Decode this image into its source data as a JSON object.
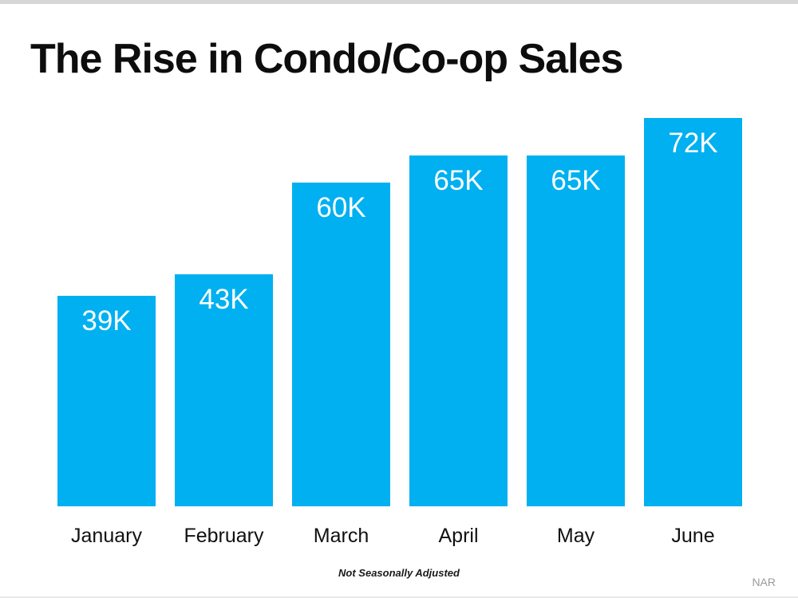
{
  "chart_data": {
    "type": "bar",
    "title": "The Rise in Condo/Co-op Sales",
    "categories": [
      "January",
      "February",
      "March",
      "April",
      "May",
      "June"
    ],
    "values": [
      39000,
      43000,
      60000,
      65000,
      65000,
      72000
    ],
    "value_labels": [
      "39K",
      "43K",
      "60K",
      "65K",
      "65K",
      "72K"
    ],
    "ylim": [
      0,
      72000
    ],
    "grid": false,
    "legend": "none",
    "bar_color": "#00b0f0",
    "value_label_color": "#ffffff",
    "footnote": "Not Seasonally Adjusted",
    "source": "NAR"
  }
}
